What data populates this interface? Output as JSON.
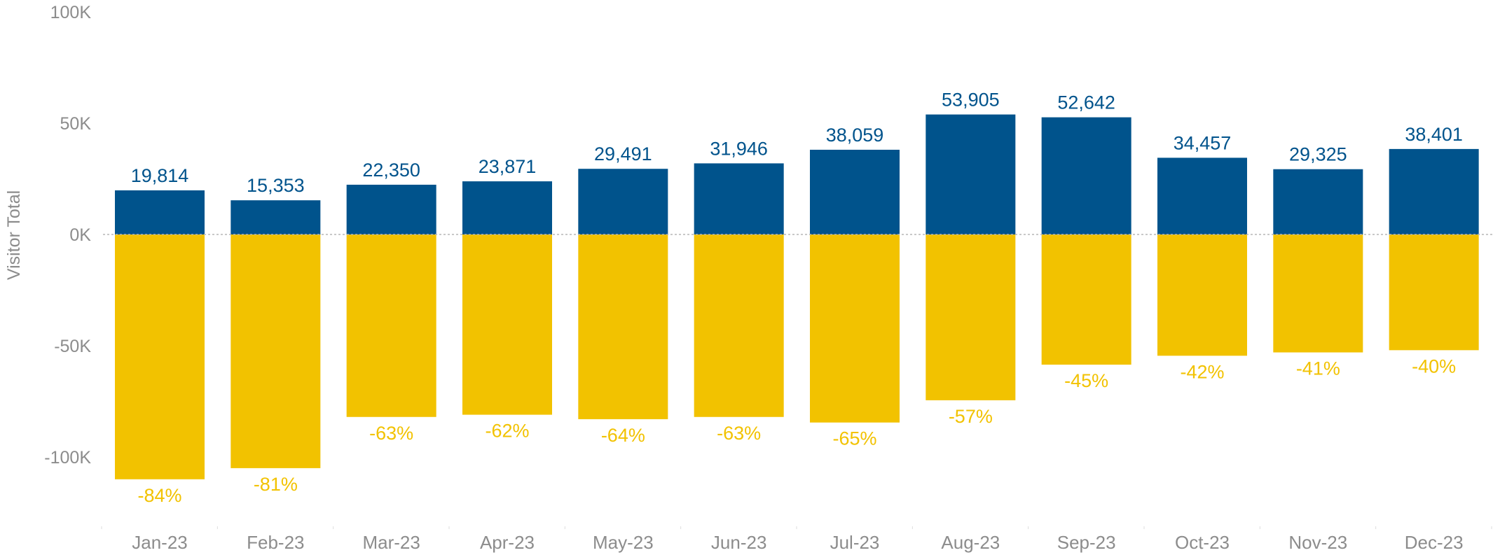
{
  "chart_data": {
    "type": "bar",
    "ylabel": "Visitor Total",
    "xlabel": "",
    "ylim": [
      -100000,
      100000
    ],
    "yticks": [
      {
        "value": 100000,
        "label": "100K"
      },
      {
        "value": 50000,
        "label": "50K"
      },
      {
        "value": 0,
        "label": "0K"
      },
      {
        "value": -50000,
        "label": "-50K"
      },
      {
        "value": -100000,
        "label": "-100K"
      }
    ],
    "categories": [
      "Jan-23",
      "Feb-23",
      "Mar-23",
      "Apr-23",
      "May-23",
      "Jun-23",
      "Jul-23",
      "Aug-23",
      "Sep-23",
      "Oct-23",
      "Nov-23",
      "Dec-23"
    ],
    "series": [
      {
        "color": "#00538c",
        "values": [
          19814,
          15353,
          22350,
          23871,
          29491,
          31946,
          38059,
          53905,
          52642,
          34457,
          29325,
          38401
        ],
        "labels": [
          "19,814",
          "15,353",
          "22,350",
          "23,871",
          "29,491",
          "31,946",
          "38,059",
          "53,905",
          "52,642",
          "34,457",
          "29,325",
          "38,401"
        ]
      },
      {
        "color": "#f2c200",
        "values": [
          -110000,
          -105000,
          -82000,
          -81000,
          -83000,
          -82000,
          -84500,
          -74500,
          -58500,
          -54500,
          -53000,
          -52000
        ],
        "labels": [
          "-84%",
          "-81%",
          "-63%",
          "-62%",
          "-64%",
          "-63%",
          "-65%",
          "-57%",
          "-45%",
          "-42%",
          "-41%",
          "-40%"
        ]
      }
    ],
    "grid": false,
    "zero_line": "dotted"
  }
}
